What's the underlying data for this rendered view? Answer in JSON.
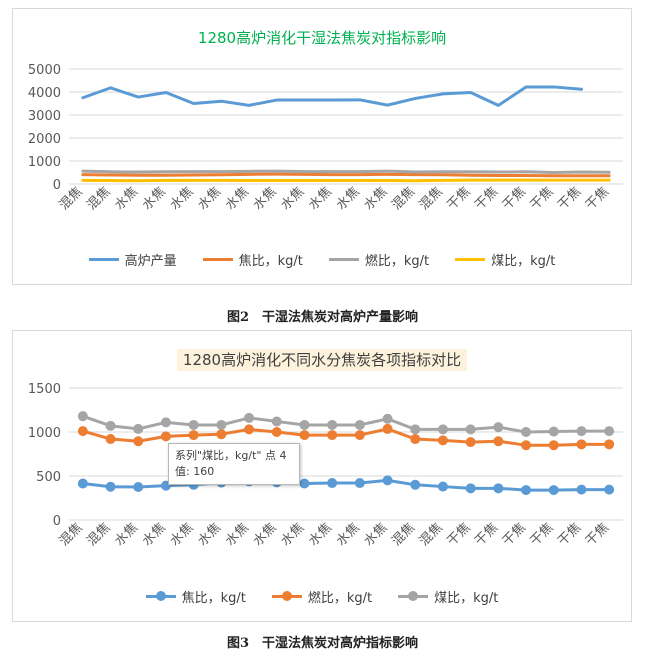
{
  "chart_data": [
    {
      "type": "line",
      "title": "1280高炉消化干湿法焦炭对指标影响",
      "categories": [
        "混焦",
        "混焦",
        "水焦",
        "水焦",
        "水焦",
        "水焦",
        "水焦",
        "水焦",
        "水焦",
        "水焦",
        "水焦",
        "水焦",
        "混焦",
        "混焦",
        "干焦",
        "干焦",
        "干焦",
        "干焦",
        "干焦",
        "干焦"
      ],
      "ylim": [
        0,
        5000
      ],
      "yticks": [
        "0",
        "1000",
        "2000",
        "3000",
        "4000",
        "5000"
      ],
      "grid": true,
      "legend_position": "bottom",
      "series": [
        {
          "name": "高炉产量",
          "color": "#5b9bd5",
          "values": [
            3750,
            4180,
            3780,
            3980,
            3500,
            3600,
            3420,
            3650,
            3650,
            3650,
            3660,
            3430,
            3720,
            3920,
            3980,
            3420,
            4220,
            4220,
            4120,
            0
          ]
        },
        {
          "name": "焦比，kg/t",
          "color": "#ed7d31",
          "values": [
            410,
            390,
            380,
            380,
            390,
            400,
            420,
            430,
            420,
            410,
            410,
            420,
            410,
            400,
            380,
            370,
            370,
            360,
            360,
            360
          ]
        },
        {
          "name": "燃比，kg/t",
          "color": "#a5a5a5",
          "values": [
            560,
            530,
            520,
            530,
            540,
            540,
            550,
            560,
            540,
            540,
            540,
            560,
            520,
            530,
            530,
            520,
            530,
            500,
            520,
            510
          ]
        },
        {
          "name": "煤比，kg/t",
          "color": "#ffc000",
          "values": [
            160,
            150,
            140,
            160,
            160,
            160,
            150,
            150,
            150,
            150,
            150,
            150,
            140,
            160,
            170,
            170,
            170,
            170,
            170,
            170
          ]
        }
      ]
    },
    {
      "type": "line",
      "title": "1280高炉消化不同水分焦炭各项指标对比",
      "categories": [
        "混焦",
        "混焦",
        "水焦",
        "水焦",
        "水焦",
        "水焦",
        "水焦",
        "水焦",
        "水焦",
        "水焦",
        "水焦",
        "水焦",
        "混焦",
        "混焦",
        "干焦",
        "干焦",
        "干焦",
        "干焦",
        "干焦",
        "干焦"
      ],
      "ylim": [
        0,
        1500
      ],
      "yticks": [
        "0",
        "500",
        "1000",
        "1500"
      ],
      "grid": true,
      "legend_position": "bottom",
      "series": [
        {
          "name": "焦比，kg/t",
          "color": "#5b9bd5",
          "values": [
            415,
            378,
            375,
            390,
            400,
            425,
            440,
            428,
            415,
            420,
            420,
            450,
            400,
            380,
            360,
            360,
            340,
            340,
            345,
            345
          ]
        },
        {
          "name": "燃比，kg/t",
          "color": "#ed7d31",
          "values": [
            1010,
            920,
            895,
            950,
            965,
            975,
            1030,
            1000,
            965,
            965,
            965,
            1035,
            920,
            905,
            885,
            895,
            850,
            850,
            860,
            860
          ]
        },
        {
          "name": "煤比，kg/t",
          "color": "#a5a5a5",
          "values": [
            1180,
            1070,
            1035,
            1110,
            1080,
            1080,
            1160,
            1120,
            1080,
            1080,
            1080,
            1150,
            1030,
            1030,
            1030,
            1055,
            1000,
            1005,
            1010,
            1010
          ]
        }
      ],
      "tooltip": {
        "line1": "系列\"煤比，kg/t\" 点 4",
        "line2": "值: 160"
      }
    }
  ],
  "captions": {
    "fig2": "图2　干湿法焦炭对高炉产量影响",
    "fig3": "图3　干湿法焦炭对高炉指标影响"
  }
}
